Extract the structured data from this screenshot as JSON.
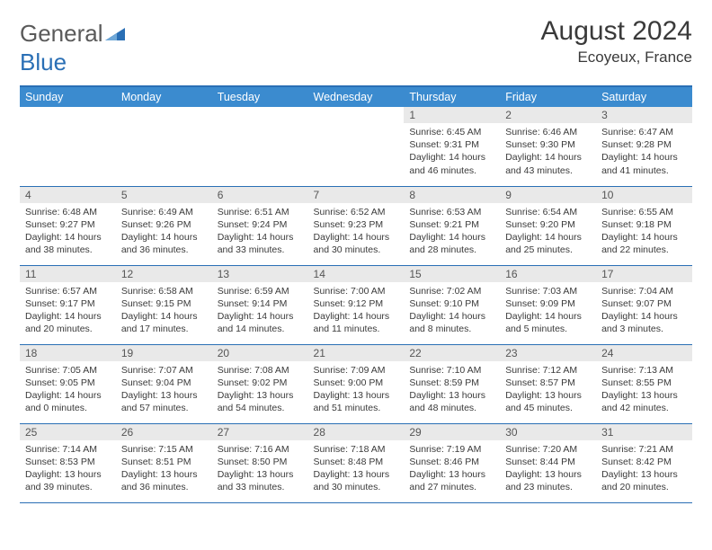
{
  "logo": {
    "word1": "General",
    "word2": "Blue"
  },
  "title": "August 2024",
  "location": "Ecoyeux, France",
  "colors": {
    "header_bg": "#3b8bcf",
    "header_border": "#2a6fb5",
    "daynum_bg": "#e9e9e9",
    "text": "#3a3a3a"
  },
  "weekdays": [
    "Sunday",
    "Monday",
    "Tuesday",
    "Wednesday",
    "Thursday",
    "Friday",
    "Saturday"
  ],
  "weeks": [
    [
      {
        "empty": true
      },
      {
        "empty": true
      },
      {
        "empty": true
      },
      {
        "empty": true
      },
      {
        "n": "1",
        "sunrise": "6:45 AM",
        "sunset": "9:31 PM",
        "day_h": "14",
        "day_m": "46"
      },
      {
        "n": "2",
        "sunrise": "6:46 AM",
        "sunset": "9:30 PM",
        "day_h": "14",
        "day_m": "43"
      },
      {
        "n": "3",
        "sunrise": "6:47 AM",
        "sunset": "9:28 PM",
        "day_h": "14",
        "day_m": "41"
      }
    ],
    [
      {
        "n": "4",
        "sunrise": "6:48 AM",
        "sunset": "9:27 PM",
        "day_h": "14",
        "day_m": "38"
      },
      {
        "n": "5",
        "sunrise": "6:49 AM",
        "sunset": "9:26 PM",
        "day_h": "14",
        "day_m": "36"
      },
      {
        "n": "6",
        "sunrise": "6:51 AM",
        "sunset": "9:24 PM",
        "day_h": "14",
        "day_m": "33"
      },
      {
        "n": "7",
        "sunrise": "6:52 AM",
        "sunset": "9:23 PM",
        "day_h": "14",
        "day_m": "30"
      },
      {
        "n": "8",
        "sunrise": "6:53 AM",
        "sunset": "9:21 PM",
        "day_h": "14",
        "day_m": "28"
      },
      {
        "n": "9",
        "sunrise": "6:54 AM",
        "sunset": "9:20 PM",
        "day_h": "14",
        "day_m": "25"
      },
      {
        "n": "10",
        "sunrise": "6:55 AM",
        "sunset": "9:18 PM",
        "day_h": "14",
        "day_m": "22"
      }
    ],
    [
      {
        "n": "11",
        "sunrise": "6:57 AM",
        "sunset": "9:17 PM",
        "day_h": "14",
        "day_m": "20"
      },
      {
        "n": "12",
        "sunrise": "6:58 AM",
        "sunset": "9:15 PM",
        "day_h": "14",
        "day_m": "17"
      },
      {
        "n": "13",
        "sunrise": "6:59 AM",
        "sunset": "9:14 PM",
        "day_h": "14",
        "day_m": "14"
      },
      {
        "n": "14",
        "sunrise": "7:00 AM",
        "sunset": "9:12 PM",
        "day_h": "14",
        "day_m": "11"
      },
      {
        "n": "15",
        "sunrise": "7:02 AM",
        "sunset": "9:10 PM",
        "day_h": "14",
        "day_m": "8"
      },
      {
        "n": "16",
        "sunrise": "7:03 AM",
        "sunset": "9:09 PM",
        "day_h": "14",
        "day_m": "5"
      },
      {
        "n": "17",
        "sunrise": "7:04 AM",
        "sunset": "9:07 PM",
        "day_h": "14",
        "day_m": "3"
      }
    ],
    [
      {
        "n": "18",
        "sunrise": "7:05 AM",
        "sunset": "9:05 PM",
        "day_h": "14",
        "day_m": "0"
      },
      {
        "n": "19",
        "sunrise": "7:07 AM",
        "sunset": "9:04 PM",
        "day_h": "13",
        "day_m": "57"
      },
      {
        "n": "20",
        "sunrise": "7:08 AM",
        "sunset": "9:02 PM",
        "day_h": "13",
        "day_m": "54"
      },
      {
        "n": "21",
        "sunrise": "7:09 AM",
        "sunset": "9:00 PM",
        "day_h": "13",
        "day_m": "51"
      },
      {
        "n": "22",
        "sunrise": "7:10 AM",
        "sunset": "8:59 PM",
        "day_h": "13",
        "day_m": "48"
      },
      {
        "n": "23",
        "sunrise": "7:12 AM",
        "sunset": "8:57 PM",
        "day_h": "13",
        "day_m": "45"
      },
      {
        "n": "24",
        "sunrise": "7:13 AM",
        "sunset": "8:55 PM",
        "day_h": "13",
        "day_m": "42"
      }
    ],
    [
      {
        "n": "25",
        "sunrise": "7:14 AM",
        "sunset": "8:53 PM",
        "day_h": "13",
        "day_m": "39"
      },
      {
        "n": "26",
        "sunrise": "7:15 AM",
        "sunset": "8:51 PM",
        "day_h": "13",
        "day_m": "36"
      },
      {
        "n": "27",
        "sunrise": "7:16 AM",
        "sunset": "8:50 PM",
        "day_h": "13",
        "day_m": "33"
      },
      {
        "n": "28",
        "sunrise": "7:18 AM",
        "sunset": "8:48 PM",
        "day_h": "13",
        "day_m": "30"
      },
      {
        "n": "29",
        "sunrise": "7:19 AM",
        "sunset": "8:46 PM",
        "day_h": "13",
        "day_m": "27"
      },
      {
        "n": "30",
        "sunrise": "7:20 AM",
        "sunset": "8:44 PM",
        "day_h": "13",
        "day_m": "23"
      },
      {
        "n": "31",
        "sunrise": "7:21 AM",
        "sunset": "8:42 PM",
        "day_h": "13",
        "day_m": "20"
      }
    ]
  ]
}
